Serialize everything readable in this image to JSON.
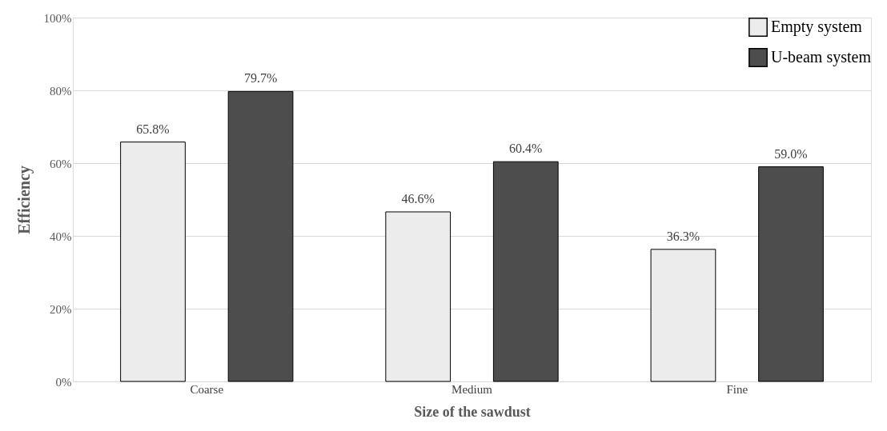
{
  "chart_data": {
    "type": "bar",
    "xlabel": "Size of the sawdust",
    "ylabel": "Efficiency",
    "categories": [
      "Coarse",
      "Medium",
      "Fine"
    ],
    "series": [
      {
        "name": "Empty system",
        "color": "#ececec",
        "values": [
          65.8,
          46.6,
          36.3
        ],
        "value_labels": [
          "65.8%",
          "46.6%",
          "36.3%"
        ]
      },
      {
        "name": "U-beam system",
        "color": "#4d4d4d",
        "values": [
          79.7,
          60.4,
          59.0
        ],
        "value_labels": [
          "79.7%",
          "60.4%",
          "59.0%"
        ]
      }
    ],
    "ylim": [
      0,
      100
    ],
    "yticks": [
      {
        "value": 0,
        "label": "0%"
      },
      {
        "value": 20,
        "label": "20%"
      },
      {
        "value": 40,
        "label": "40%"
      },
      {
        "value": 60,
        "label": "60%"
      },
      {
        "value": 80,
        "label": "80%"
      },
      {
        "value": 100,
        "label": "100%"
      }
    ],
    "grid": "y",
    "legend": "top right"
  }
}
